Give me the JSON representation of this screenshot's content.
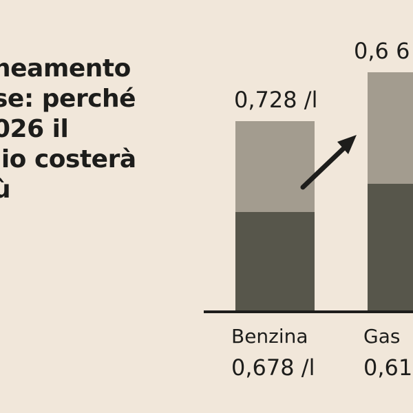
{
  "headline": {
    "lines": [
      "neamento",
      "se: perché",
      "026 il",
      "lio costerà",
      "ù"
    ]
  },
  "colors": {
    "background": "#f1e7da",
    "bar_top": "#a39c8f",
    "bar_bottom": "#57564b",
    "axis": "#1d1d1b"
  },
  "chart_data": {
    "type": "bar",
    "stacked": true,
    "categories": [
      "Benzina",
      "Gas"
    ],
    "category_labels": [
      "Benzina",
      "Gas"
    ],
    "top_labels": [
      "0,728 /l",
      "0,6 6"
    ],
    "bottom_labels": [
      "0,678 /l",
      "0,61"
    ],
    "series": [
      {
        "name": "",
        "values": [
          0.678,
          0.61
        ]
      },
      {
        "name": "",
        "values": [
          0.05,
          0.06
        ]
      }
    ],
    "annotation": "arrow pointing up-right",
    "xlabel": "",
    "ylabel": "",
    "grid": false
  }
}
